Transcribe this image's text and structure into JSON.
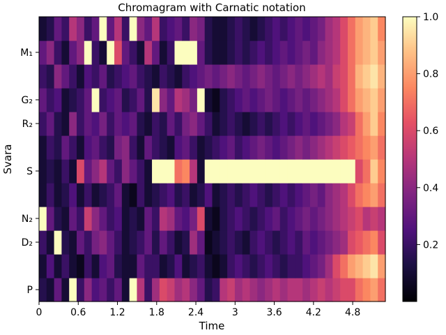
{
  "chart_data": {
    "type": "heatmap",
    "title": "Chromagram with Carnatic notation",
    "xlabel": "Time",
    "ylabel": "Svara",
    "x_ticks": [
      "0",
      "0.6",
      "1.2",
      "1.8",
      "2.4",
      "3",
      "3.6",
      "4.2",
      "4.8"
    ],
    "x_tick_values": [
      0,
      0.6,
      1.2,
      1.8,
      2.4,
      3,
      3.6,
      4.2,
      4.8
    ],
    "xlim": [
      0,
      5.3
    ],
    "rows": [
      {
        "label": "P",
        "values": [
          0.15,
          0.1,
          0.3,
          0.1,
          1.0,
          0.2,
          0.4,
          0.25,
          0.3,
          0.2,
          0.3,
          0.1,
          1.0,
          0.5,
          0.2,
          0.45,
          0.6,
          0.55,
          0.45,
          0.5,
          0.4,
          0.3,
          0.15,
          0.2,
          0.5,
          0.55,
          0.45,
          0.5,
          0.45,
          0.4,
          0.45,
          0.5,
          0.45,
          0.5,
          0.5,
          0.45,
          0.5,
          0.55,
          0.5,
          0.55,
          0.6,
          0.6,
          0.7,
          0.75,
          0.8,
          0.7
        ]
      },
      {
        "label": "",
        "values": [
          0.1,
          0.25,
          0.1,
          0.2,
          0.1,
          0.05,
          0.2,
          0.1,
          0.25,
          0.3,
          0.15,
          0.1,
          0.1,
          0.3,
          0.2,
          0.2,
          0.1,
          0.15,
          0.25,
          0.1,
          0.15,
          0.2,
          0.1,
          0.05,
          0.1,
          0.2,
          0.25,
          0.2,
          0.15,
          0.2,
          0.25,
          0.2,
          0.15,
          0.2,
          0.2,
          0.25,
          0.3,
          0.35,
          0.45,
          0.6,
          0.7,
          0.8,
          0.85,
          0.9,
          0.95,
          0.8
        ]
      },
      {
        "label": "D₂",
        "values": [
          0.2,
          0.1,
          1.0,
          0.15,
          0.1,
          0.3,
          0.2,
          0.35,
          0.4,
          0.3,
          0.2,
          0.1,
          0.15,
          0.2,
          0.3,
          0.15,
          0.3,
          0.2,
          0.1,
          0.15,
          0.45,
          0.3,
          0.05,
          0.1,
          0.15,
          0.2,
          0.15,
          0.1,
          0.2,
          0.25,
          0.2,
          0.15,
          0.2,
          0.25,
          0.2,
          0.3,
          0.25,
          0.3,
          0.35,
          0.4,
          0.45,
          0.6,
          0.65,
          0.7,
          0.75,
          0.6
        ]
      },
      {
        "label": "N₂",
        "values": [
          1.0,
          0.3,
          0.15,
          0.1,
          0.3,
          0.2,
          0.55,
          0.4,
          0.3,
          0.2,
          0.25,
          0.1,
          0.15,
          0.1,
          0.3,
          0.2,
          0.5,
          0.45,
          0.3,
          0.25,
          0.35,
          0.6,
          0.1,
          0.05,
          0.15,
          0.2,
          0.25,
          0.2,
          0.15,
          0.2,
          0.25,
          0.3,
          0.2,
          0.25,
          0.3,
          0.35,
          0.3,
          0.35,
          0.4,
          0.45,
          0.5,
          0.55,
          0.6,
          0.5,
          0.55,
          0.5
        ]
      },
      {
        "label": "",
        "values": [
          0.1,
          0.2,
          0.1,
          0.15,
          0.25,
          0.1,
          0.2,
          0.1,
          0.15,
          0.2,
          0.3,
          0.1,
          0.05,
          0.2,
          0.1,
          0.15,
          0.2,
          0.25,
          0.15,
          0.2,
          0.1,
          0.15,
          0.25,
          0.1,
          0.15,
          0.2,
          0.15,
          0.2,
          0.25,
          0.2,
          0.15,
          0.2,
          0.25,
          0.2,
          0.25,
          0.3,
          0.35,
          0.3,
          0.4,
          0.45,
          0.5,
          0.6,
          0.7,
          0.75,
          0.8,
          0.7
        ]
      },
      {
        "label": "S",
        "values": [
          0.1,
          0.15,
          0.1,
          0.2,
          0.1,
          0.6,
          0.3,
          0.4,
          0.5,
          0.3,
          0.2,
          0.4,
          0.3,
          0.2,
          0.1,
          1.0,
          1.0,
          1.0,
          0.7,
          0.75,
          0.5,
          0.1,
          1.0,
          1.0,
          1.0,
          1.0,
          1.0,
          1.0,
          1.0,
          1.0,
          1.0,
          1.0,
          1.0,
          1.0,
          1.0,
          1.0,
          1.0,
          1.0,
          1.0,
          1.0,
          1.0,
          1.0,
          0.6,
          0.7,
          0.9,
          0.75
        ]
      },
      {
        "label": "",
        "values": [
          0.1,
          0.2,
          0.15,
          0.3,
          0.2,
          0.1,
          0.25,
          0.3,
          0.2,
          0.15,
          0.35,
          0.4,
          0.2,
          0.1,
          0.3,
          0.2,
          0.15,
          0.1,
          0.25,
          0.3,
          0.2,
          0.1,
          0.15,
          0.2,
          0.25,
          0.3,
          0.2,
          0.25,
          0.3,
          0.35,
          0.3,
          0.25,
          0.3,
          0.35,
          0.4,
          0.35,
          0.4,
          0.45,
          0.5,
          0.55,
          0.6,
          0.65,
          0.7,
          0.75,
          0.8,
          0.7
        ]
      },
      {
        "label": "R₂",
        "values": [
          0.2,
          0.3,
          0.15,
          0.1,
          0.4,
          0.2,
          0.3,
          0.25,
          0.35,
          0.2,
          0.3,
          0.25,
          0.3,
          0.15,
          0.1,
          0.2,
          0.15,
          0.3,
          0.2,
          0.35,
          0.4,
          0.3,
          0.2,
          0.1,
          0.15,
          0.2,
          0.15,
          0.1,
          0.15,
          0.2,
          0.15,
          0.2,
          0.25,
          0.2,
          0.25,
          0.3,
          0.25,
          0.3,
          0.35,
          0.4,
          0.5,
          0.55,
          0.7,
          0.8,
          0.9,
          0.75
        ]
      },
      {
        "label": "G₂",
        "values": [
          0.3,
          0.2,
          0.25,
          0.1,
          0.15,
          0.2,
          0.3,
          1.0,
          0.2,
          0.25,
          0.3,
          0.15,
          0.2,
          0.3,
          0.15,
          0.95,
          0.4,
          0.3,
          0.5,
          0.45,
          0.35,
          1.0,
          0.1,
          0.05,
          0.15,
          0.2,
          0.25,
          0.3,
          0.25,
          0.3,
          0.35,
          0.3,
          0.25,
          0.3,
          0.35,
          0.3,
          0.35,
          0.4,
          0.45,
          0.5,
          0.6,
          0.7,
          0.8,
          0.85,
          0.9,
          0.8
        ]
      },
      {
        "label": "",
        "values": [
          0.2,
          0.15,
          0.4,
          0.3,
          0.2,
          0.1,
          0.25,
          0.2,
          0.3,
          0.15,
          0.2,
          0.25,
          0.3,
          0.2,
          0.15,
          0.1,
          0.2,
          0.15,
          0.1,
          0.2,
          0.25,
          0.3,
          0.35,
          0.3,
          0.35,
          0.4,
          0.35,
          0.3,
          0.35,
          0.4,
          0.35,
          0.3,
          0.35,
          0.4,
          0.35,
          0.4,
          0.45,
          0.5,
          0.45,
          0.55,
          0.6,
          0.7,
          0.85,
          0.9,
          0.95,
          0.85
        ]
      },
      {
        "label": "M₁",
        "values": [
          0.3,
          0.4,
          0.2,
          0.1,
          0.3,
          0.4,
          1.0,
          0.2,
          0.1,
          1.0,
          0.6,
          0.3,
          0.2,
          0.1,
          0.5,
          0.3,
          0.1,
          0.2,
          1.0,
          1.0,
          1.0,
          0.3,
          0.15,
          0.1,
          0.1,
          0.15,
          0.2,
          0.15,
          0.2,
          0.25,
          0.2,
          0.25,
          0.3,
          0.25,
          0.3,
          0.35,
          0.3,
          0.4,
          0.45,
          0.5,
          0.6,
          0.7,
          0.8,
          0.85,
          0.9,
          0.8
        ]
      },
      {
        "label": "",
        "values": [
          0.1,
          0.15,
          0.3,
          0.2,
          0.5,
          0.4,
          0.2,
          0.3,
          1.0,
          0.3,
          0.5,
          0.2,
          1.0,
          0.4,
          0.3,
          0.5,
          0.2,
          0.25,
          0.3,
          0.2,
          0.4,
          0.35,
          0.15,
          0.1,
          0.1,
          0.15,
          0.2,
          0.15,
          0.1,
          0.15,
          0.2,
          0.25,
          0.2,
          0.25,
          0.3,
          0.25,
          0.3,
          0.35,
          0.45,
          0.5,
          0.6,
          0.7,
          0.8,
          0.85,
          0.9,
          0.75
        ]
      }
    ],
    "colorbar": {
      "ticks": [
        "0.2",
        "0.4",
        "0.6",
        "0.8",
        "1.0"
      ],
      "tick_values": [
        0.2,
        0.4,
        0.6,
        0.8,
        1.0
      ],
      "range": [
        0,
        1
      ],
      "colormap": "magma"
    }
  }
}
